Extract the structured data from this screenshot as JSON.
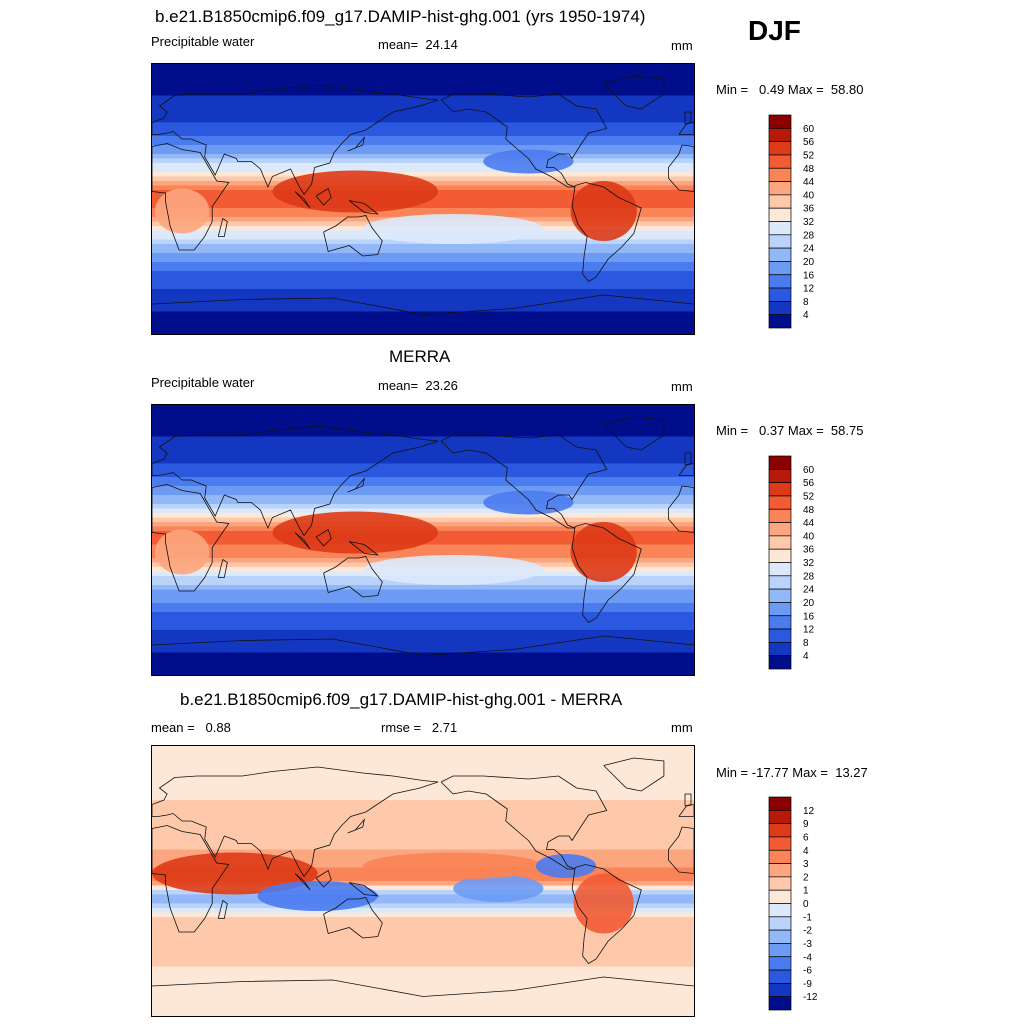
{
  "season": "DJF",
  "panels": [
    {
      "title": "b.e21.B1850cmip6.f09_g17.DAMIP-hist-ghg.001 (yrs 1950-1974)",
      "left_label": "Precipitable water",
      "center_label": "mean=  24.14",
      "units": "mm",
      "minmax": "Min =   0.49 Max =  58.80"
    },
    {
      "title": "MERRA",
      "left_label": "Precipitable water",
      "center_label": "mean=  23.26",
      "units": "mm",
      "minmax": "Min =   0.37 Max =  58.75"
    },
    {
      "title": "b.e21.B1850cmip6.f09_g17.DAMIP-hist-ghg.001 - MERRA",
      "left_label": "mean =   0.88",
      "center_label": "rmse =   2.71",
      "units": "mm",
      "minmax": "Min = -17.77 Max =  13.27"
    }
  ],
  "chart_data": [
    {
      "type": "heatmap",
      "title": "b.e21.B1850cmip6.f09_g17.DAMIP-hist-ghg.001 (yrs 1950-1974)",
      "variable": "Precipitable water",
      "units": "mm",
      "mean": 24.14,
      "min": 0.49,
      "max": 58.8,
      "colorbar_levels": [
        "60",
        "56",
        "52",
        "48",
        "44",
        "40",
        "36",
        "32",
        "28",
        "24",
        "20",
        "16",
        "12",
        "8",
        "4"
      ],
      "colorbar_colors": [
        "#8b0000",
        "#b81a0a",
        "#dd3a17",
        "#f25b33",
        "#f98457",
        "#fca67f",
        "#fdc9aa",
        "#fde7d6",
        "#dbe9fb",
        "#b9d3fb",
        "#93b8f8",
        "#6d9bf4",
        "#4a7bef",
        "#2a59e0",
        "#1437c2",
        "#000e8c"
      ],
      "ylim": [
        -90,
        90
      ],
      "xlim": [
        0,
        360
      ],
      "profile": [
        {
          "lat": 90,
          "value": 2
        },
        {
          "lat": 60,
          "value": 5
        },
        {
          "lat": 45,
          "value": 10
        },
        {
          "lat": 30,
          "value": 20
        },
        {
          "lat": 15,
          "value": 36
        },
        {
          "lat": 5,
          "value": 50
        },
        {
          "lat": 0,
          "value": 52
        },
        {
          "lat": -10,
          "value": 46
        },
        {
          "lat": -20,
          "value": 34
        },
        {
          "lat": -35,
          "value": 20
        },
        {
          "lat": -50,
          "value": 11
        },
        {
          "lat": -65,
          "value": 6
        },
        {
          "lat": -90,
          "value": 1
        }
      ]
    },
    {
      "type": "heatmap",
      "title": "MERRA",
      "variable": "Precipitable water",
      "units": "mm",
      "mean": 23.26,
      "min": 0.37,
      "max": 58.75,
      "colorbar_levels": [
        "60",
        "56",
        "52",
        "48",
        "44",
        "40",
        "36",
        "32",
        "28",
        "24",
        "20",
        "16",
        "12",
        "8",
        "4"
      ],
      "colorbar_colors": [
        "#8b0000",
        "#b81a0a",
        "#dd3a17",
        "#f25b33",
        "#f98457",
        "#fca67f",
        "#fdc9aa",
        "#fde7d6",
        "#dbe9fb",
        "#b9d3fb",
        "#93b8f8",
        "#6d9bf4",
        "#4a7bef",
        "#2a59e0",
        "#1437c2",
        "#000e8c"
      ],
      "ylim": [
        -90,
        90
      ],
      "xlim": [
        0,
        360
      ],
      "profile": [
        {
          "lat": 90,
          "value": 2
        },
        {
          "lat": 60,
          "value": 5
        },
        {
          "lat": 45,
          "value": 10
        },
        {
          "lat": 30,
          "value": 19
        },
        {
          "lat": 15,
          "value": 34
        },
        {
          "lat": 5,
          "value": 48
        },
        {
          "lat": 0,
          "value": 50
        },
        {
          "lat": -10,
          "value": 45
        },
        {
          "lat": -20,
          "value": 33
        },
        {
          "lat": -35,
          "value": 19
        },
        {
          "lat": -50,
          "value": 11
        },
        {
          "lat": -65,
          "value": 6
        },
        {
          "lat": -90,
          "value": 1
        }
      ]
    },
    {
      "type": "heatmap",
      "title": "b.e21.B1850cmip6.f09_g17.DAMIP-hist-ghg.001 - MERRA",
      "units": "mm",
      "mean": 0.88,
      "rmse": 2.71,
      "min": -17.77,
      "max": 13.27,
      "colorbar_levels": [
        "12",
        "9",
        "6",
        "4",
        "3",
        "2",
        "1",
        "0",
        "-1",
        "-2",
        "-3",
        "-4",
        "-6",
        "-9",
        "-12"
      ],
      "colorbar_colors": [
        "#8b0000",
        "#b81a0a",
        "#dd3a17",
        "#f25b33",
        "#f98457",
        "#fca67f",
        "#fdc9aa",
        "#fde7d6",
        "#dbe9fb",
        "#b9d3fb",
        "#93b8f8",
        "#6d9bf4",
        "#4a7bef",
        "#2a59e0",
        "#1437c2",
        "#000e8c"
      ],
      "ylim": [
        -90,
        90
      ],
      "xlim": [
        0,
        360
      ],
      "profile": [
        {
          "lat": 90,
          "value": 0.5
        },
        {
          "lat": 60,
          "value": 0.8
        },
        {
          "lat": 40,
          "value": 1.5
        },
        {
          "lat": 20,
          "value": 2
        },
        {
          "lat": 10,
          "value": 3
        },
        {
          "lat": 0,
          "value": 4
        },
        {
          "lat": -10,
          "value": -3
        },
        {
          "lat": -25,
          "value": 1
        },
        {
          "lat": -45,
          "value": 1.5
        },
        {
          "lat": -70,
          "value": 0.5
        },
        {
          "lat": -90,
          "value": 0.3
        }
      ]
    }
  ]
}
